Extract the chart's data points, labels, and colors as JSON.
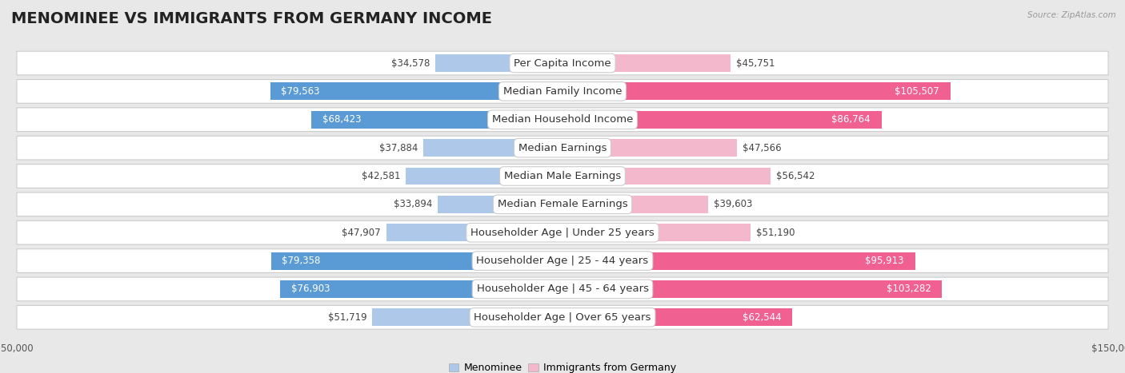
{
  "title": "MENOMINEE VS IMMIGRANTS FROM GERMANY INCOME",
  "source": "Source: ZipAtlas.com",
  "categories": [
    "Per Capita Income",
    "Median Family Income",
    "Median Household Income",
    "Median Earnings",
    "Median Male Earnings",
    "Median Female Earnings",
    "Householder Age | Under 25 years",
    "Householder Age | 25 - 44 years",
    "Householder Age | 45 - 64 years",
    "Householder Age | Over 65 years"
  ],
  "menominee_values": [
    34578,
    79563,
    68423,
    37884,
    42581,
    33894,
    47907,
    79358,
    76903,
    51719
  ],
  "germany_values": [
    45751,
    105507,
    86764,
    47566,
    56542,
    39603,
    51190,
    95913,
    103282,
    62544
  ],
  "menominee_color_light": "#adc8e8",
  "menominee_color_dark": "#5b9bd5",
  "germany_color_light": "#f4b8cc",
  "germany_color_dark": "#f06090",
  "xlim": 150000,
  "background_color": "#e8e8e8",
  "row_bg_color": "#ffffff",
  "title_fontsize": 14,
  "label_fontsize": 9.5,
  "value_fontsize": 8.5,
  "legend_fontsize": 9,
  "axis_label_fontsize": 8.5,
  "large_threshold": 60000
}
